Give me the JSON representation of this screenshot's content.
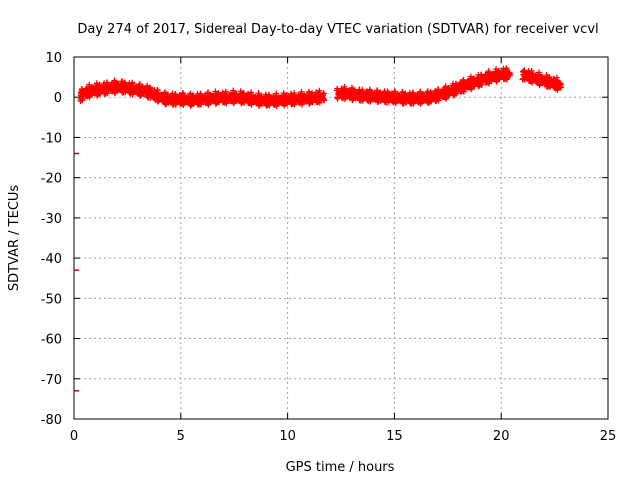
{
  "chart_data": {
    "type": "scatter",
    "title": "Day 274 of 2017, Sidereal Day-to-day VTEC variation (SDTVAR) for receiver vcvl",
    "xlabel": "GPS time / hours",
    "ylabel": "SDTVAR / TECUs",
    "xlim": [
      0,
      25
    ],
    "ylim": [
      -80,
      10
    ],
    "xticks": [
      0,
      5,
      10,
      15,
      20,
      25
    ],
    "xtick_labels": [
      "0",
      "5",
      "10",
      "15",
      "20",
      "25"
    ],
    "yticks": [
      10,
      0,
      -10,
      -20,
      -30,
      -40,
      -50,
      -60,
      -70,
      -80
    ],
    "ytick_labels": [
      "10",
      "0",
      "-10",
      "-20",
      "-30",
      "-40",
      "-50",
      "-60",
      "-70",
      "-80"
    ],
    "grid": true,
    "marker": "plus",
    "series": [
      {
        "name": "SDTVAR",
        "color": "#ff0000",
        "x": [
          0.3,
          0.5,
          0.8,
          1.0,
          1.3,
          1.6,
          1.9,
          2.1,
          2.4,
          2.7,
          3.0,
          3.3,
          3.6,
          3.9,
          4.2,
          4.5,
          4.8,
          5.1,
          5.4,
          5.7,
          6.0,
          6.3,
          6.6,
          6.9,
          7.2,
          7.5,
          7.8,
          8.1,
          8.4,
          8.7,
          9.0,
          9.3,
          9.6,
          9.9,
          10.2,
          10.5,
          10.8,
          11.1,
          11.4,
          11.7,
          12.3,
          12.6,
          12.9,
          13.2,
          13.5,
          13.8,
          14.1,
          14.4,
          14.7,
          15.0,
          15.3,
          15.6,
          15.9,
          16.2,
          16.5,
          16.8,
          17.1,
          17.4,
          17.7,
          18.0,
          18.3,
          18.6,
          18.9,
          19.2,
          19.5,
          19.8,
          20.1,
          20.4,
          21.0,
          21.3,
          21.6,
          21.9,
          22.2,
          22.5,
          22.8
        ],
        "y": [
          0.5,
          1.3,
          1.8,
          2.0,
          2.2,
          2.5,
          2.7,
          2.8,
          2.6,
          2.3,
          2.0,
          1.8,
          1.2,
          0.5,
          -0.1,
          -0.3,
          -0.4,
          -0.3,
          -0.5,
          -0.4,
          -0.3,
          -0.2,
          0.0,
          0.1,
          0.0,
          0.2,
          0.1,
          -0.1,
          -0.3,
          -0.5,
          -0.6,
          -0.6,
          -0.5,
          -0.4,
          -0.3,
          -0.2,
          -0.1,
          0.0,
          0.2,
          0.3,
          1.0,
          1.2,
          1.0,
          0.8,
          0.6,
          0.5,
          0.4,
          0.3,
          0.2,
          0.1,
          0.0,
          -0.1,
          -0.1,
          0.0,
          0.1,
          0.3,
          0.8,
          1.3,
          1.9,
          2.5,
          3.1,
          3.7,
          4.2,
          4.7,
          5.2,
          5.6,
          5.9,
          6.0,
          5.8,
          5.4,
          4.9,
          4.5,
          4.0,
          3.6,
          3.1
        ]
      },
      {
        "name": "SDTVAR (outliers)",
        "color": "#cc0000",
        "x": [
          0.0,
          0.0,
          0.0
        ],
        "y": [
          -14,
          -43,
          -73
        ]
      }
    ]
  }
}
